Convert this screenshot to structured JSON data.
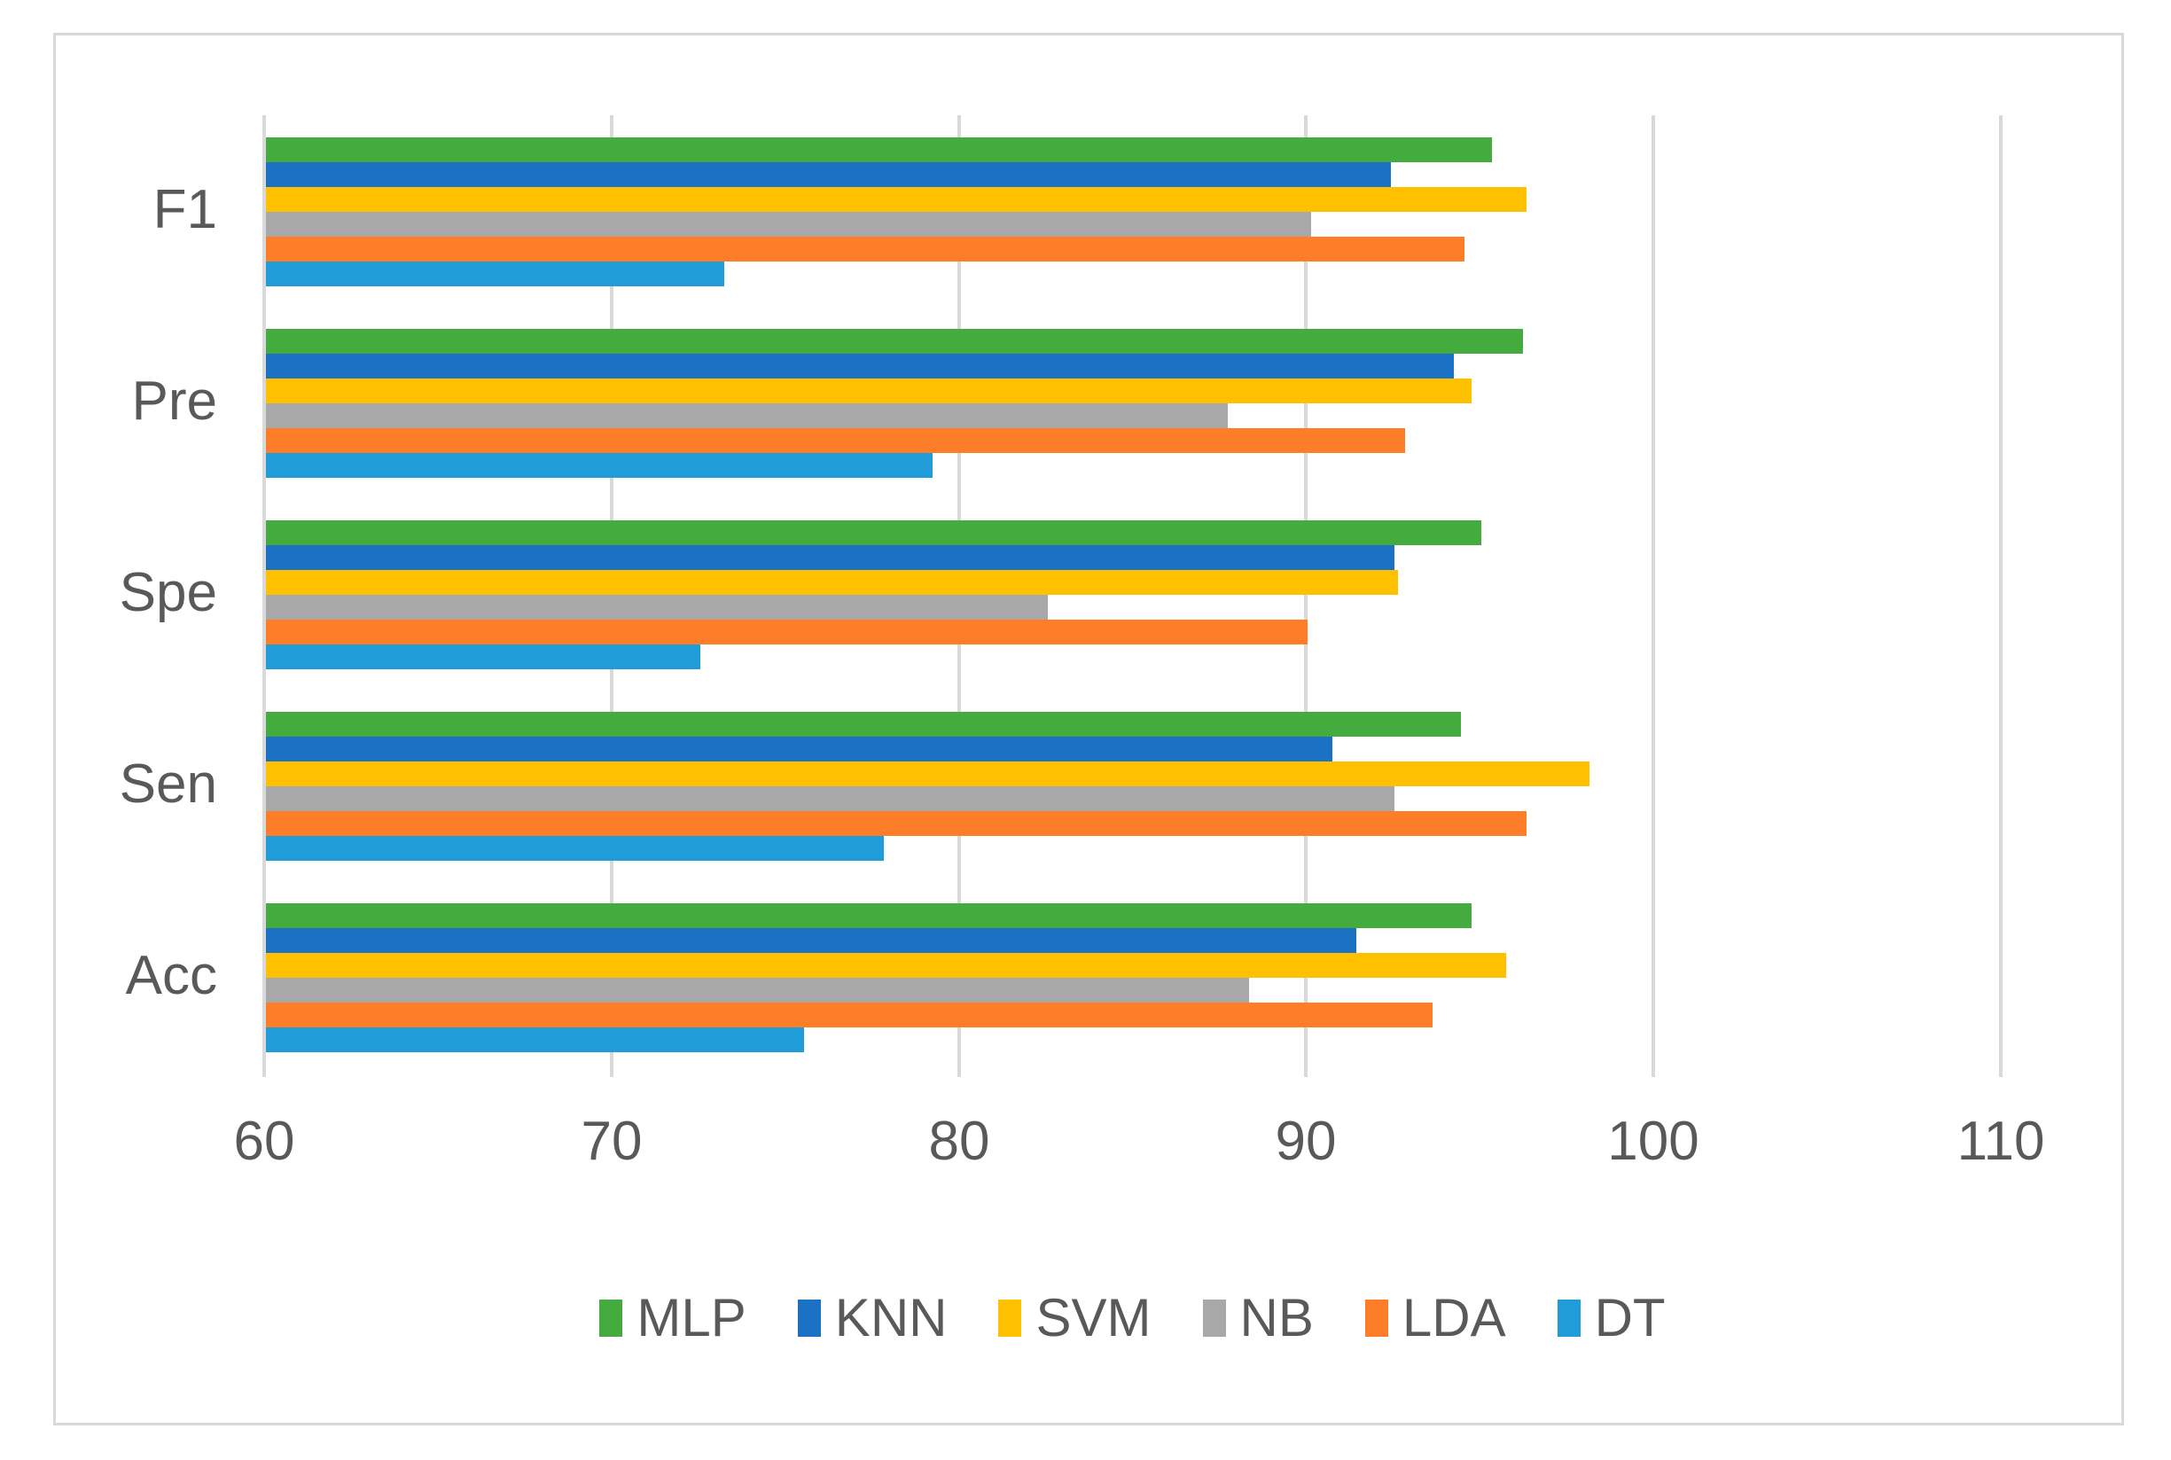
{
  "figure": {
    "background": "#FFFFFF",
    "border_color": "#D8D8D8"
  },
  "chart_data": {
    "type": "bar",
    "orientation": "horizontal",
    "title": "",
    "xlabel": "",
    "ylabel": "",
    "categories": [
      "F1",
      "Pre",
      "Spe",
      "Sen",
      "Acc"
    ],
    "series": [
      {
        "name": "MLP",
        "color": "#44AB3E",
        "values": [
          95.3,
          96.2,
          95.0,
          94.4,
          94.7
        ]
      },
      {
        "name": "KNN",
        "color": "#1B72C5",
        "values": [
          92.4,
          94.2,
          92.5,
          90.7,
          91.4
        ]
      },
      {
        "name": "SVM",
        "color": "#FFC000",
        "values": [
          96.3,
          94.7,
          92.6,
          98.1,
          95.7
        ]
      },
      {
        "name": "NB",
        "color": "#A8A8A8",
        "values": [
          90.1,
          87.7,
          82.5,
          92.5,
          88.3
        ]
      },
      {
        "name": "LDA",
        "color": "#FD7D28",
        "values": [
          94.5,
          92.8,
          90.0,
          96.3,
          93.6
        ]
      },
      {
        "name": "DT",
        "color": "#209CD8",
        "values": [
          73.2,
          79.2,
          72.5,
          77.8,
          75.5
        ]
      }
    ],
    "xlim": [
      60,
      110
    ],
    "xticks": [
      60,
      70,
      80,
      90,
      100,
      110
    ],
    "grid": true,
    "gridline_color": "#D9D9D9",
    "axis_text_color": "#595959",
    "legend_position": "bottom",
    "legend_labels": [
      "MLP",
      "KNN",
      "SVM",
      "NB",
      "LDA",
      "DT"
    ],
    "bars_order_note": "series listed top-to-bottom within each category group; categories listed top-to-bottom"
  }
}
